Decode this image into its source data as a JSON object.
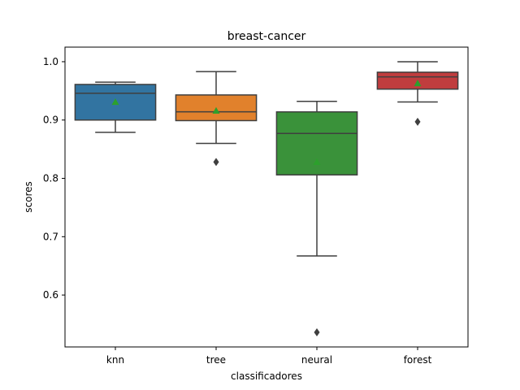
{
  "chart_data": {
    "type": "box",
    "title": "breast-cancer",
    "xlabel": "classificadores",
    "ylabel": "scores",
    "ylim": [
      0.511,
      1.025
    ],
    "yticks": [
      "0.6",
      "0.7",
      "0.8",
      "0.9",
      "1.0"
    ],
    "ytick_values": [
      0.6,
      0.7,
      0.8,
      0.9,
      1.0
    ],
    "categories": [
      "knn",
      "tree",
      "neural",
      "forest"
    ],
    "grid": false,
    "mean_marker": "triangle",
    "boxes": [
      {
        "name": "knn",
        "color": "#3274a1",
        "whisker_low": 0.879,
        "q1": 0.9,
        "median": 0.946,
        "q3": 0.961,
        "whisker_high": 0.965,
        "mean": 0.931,
        "outliers": []
      },
      {
        "name": "tree",
        "color": "#e1812c",
        "whisker_low": 0.86,
        "q1": 0.899,
        "median": 0.914,
        "q3": 0.943,
        "whisker_high": 0.983,
        "mean": 0.916,
        "outliers": [
          0.828
        ]
      },
      {
        "name": "neural",
        "color": "#3a923a",
        "whisker_low": 0.667,
        "q1": 0.806,
        "median": 0.877,
        "q3": 0.914,
        "whisker_high": 0.932,
        "mean": 0.828,
        "outliers": [
          0.536
        ]
      },
      {
        "name": "forest",
        "color": "#c03d3e",
        "whisker_low": 0.931,
        "q1": 0.953,
        "median": 0.974,
        "q3": 0.982,
        "whisker_high": 1.0,
        "mean": 0.963,
        "outliers": [
          0.897
        ]
      }
    ],
    "colors": {
      "line": "#3f3f3f",
      "mean": "#2ca02c",
      "outlier": "#3f3f3f"
    }
  }
}
